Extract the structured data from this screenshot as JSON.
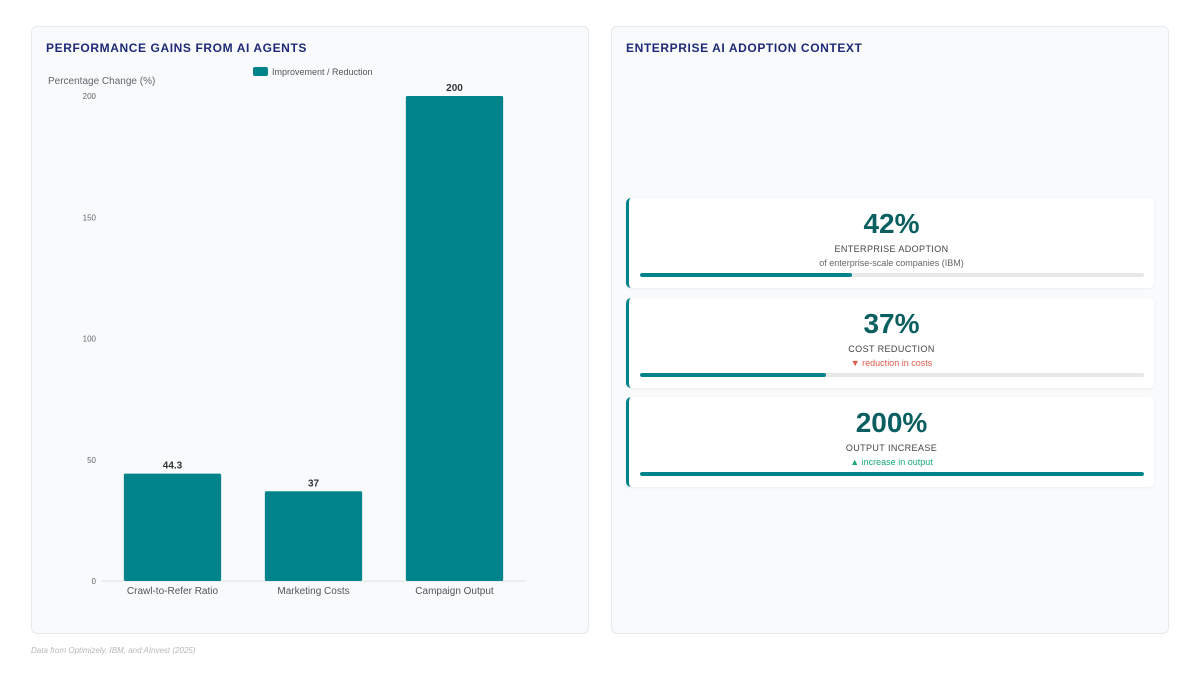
{
  "left_panel": {
    "title": "PERFORMANCE GAINS FROM AI AGENTS"
  },
  "chart_data": {
    "type": "bar",
    "categories": [
      "Crawl-to-Refer Ratio",
      "Marketing Costs",
      "Campaign Output"
    ],
    "series": [
      {
        "name": "Improvement / Reduction",
        "values": [
          44.3,
          37,
          200
        ],
        "color": "#00838a"
      }
    ],
    "data_labels": [
      "44.3",
      "37",
      "200"
    ],
    "ylabel": "Percentage Change (%)",
    "xlabel": "",
    "ylim": [
      0,
      200
    ],
    "yticks": [
      0,
      50,
      100,
      150,
      200
    ],
    "legend": "top-center",
    "grid": false
  },
  "right_panel": {
    "title": "ENTERPRISE AI ADOPTION CONTEXT",
    "cards": [
      {
        "value": "42%",
        "label": "ENTERPRISE ADOPTION",
        "note": "of enterprise-scale companies (IBM)",
        "progress": 0.42
      },
      {
        "value": "37%",
        "label": "COST REDUCTION",
        "note": "▼ reduction in costs",
        "progress": 0.37
      },
      {
        "value": "200%",
        "label": "OUTPUT INCREASE",
        "note": "▲ increase in output",
        "progress": 1.0
      }
    ]
  },
  "footer": {
    "source": "Data from Optimizely, IBM, and AInvest (2025)"
  },
  "colors": {
    "accent": "#00838a",
    "title": "#1e2a78",
    "down": "#e05a4b",
    "up": "#19a974"
  }
}
